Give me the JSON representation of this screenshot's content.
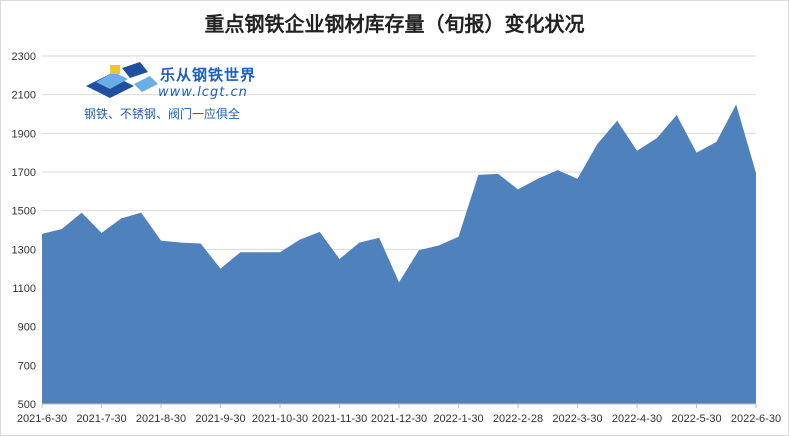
{
  "chart_data": {
    "type": "area",
    "title": "重点钢铁企业钢材库存量（旬报）变化状况",
    "xlabel": "",
    "ylabel": "",
    "ylim": [
      500,
      2300
    ],
    "yticks": [
      500,
      700,
      900,
      1100,
      1300,
      1500,
      1700,
      1900,
      2100,
      2300
    ],
    "grid": true,
    "legend": "none",
    "color": "#4f81bd",
    "x_tick_labels": [
      "2021-6-30",
      "2021-7-30",
      "2021-8-30",
      "2021-9-30",
      "2021-10-30",
      "2021-11-30",
      "2021-12-30",
      "2022-1-30",
      "2022-2-28",
      "2022-3-30",
      "2022-4-30",
      "2022-5-30",
      "2022-6-30"
    ],
    "values": [
      1380,
      1405,
      1490,
      1385,
      1460,
      1490,
      1345,
      1335,
      1330,
      1200,
      1285,
      1285,
      1285,
      1350,
      1390,
      1250,
      1335,
      1360,
      1130,
      1295,
      1320,
      1365,
      1685,
      1690,
      1610,
      1665,
      1710,
      1665,
      1845,
      1965,
      1810,
      1875,
      1995,
      1800,
      1855,
      2050,
      1695
    ]
  },
  "watermark": {
    "name": "乐从钢铁世界",
    "url": "www.lcgt.cn",
    "slogan": "钢铁、不锈钢、阀门一应俱全"
  }
}
